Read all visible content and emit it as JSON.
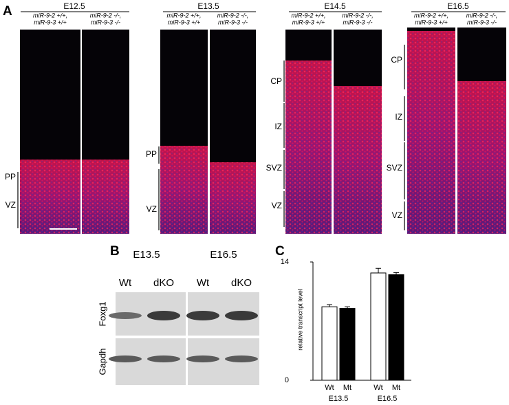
{
  "panel_a": {
    "label": "A",
    "panels": [
      {
        "stage": "E12.5",
        "genotypes": [
          [
            "miR-9-2 +/+,",
            "miR-9-3 +/+"
          ],
          [
            "miR-9-2 -/-,",
            "miR-9-3 -/-"
          ]
        ],
        "regions": [
          "PP",
          "VZ"
        ]
      },
      {
        "stage": "E13.5",
        "genotypes": [
          [
            "miR-9-2 +/+,",
            "miR-9-3 +/+"
          ],
          [
            "miR-9-2 -/-,",
            "miR-9-3 -/-"
          ]
        ],
        "regions": [
          "PP",
          "VZ"
        ]
      },
      {
        "stage": "E14.5",
        "genotypes": [
          [
            "miR-9-2 +/+,",
            "miR-9-3 +/+"
          ],
          [
            "miR-9-2 -/-,",
            "miR-9-3 -/-"
          ]
        ],
        "regions": [
          "CP",
          "IZ",
          "SVZ",
          "VZ"
        ]
      },
      {
        "stage": "E16.5",
        "genotypes": [
          [
            "miR-9-2 +/+,",
            "miR-9-3 +/+"
          ],
          [
            "miR-9-2 -/-,",
            "miR-9-3 -/-"
          ]
        ],
        "regions": [
          "CP",
          "IZ",
          "SVZ",
          "VZ"
        ]
      }
    ]
  },
  "panel_b": {
    "label": "B",
    "stages": [
      "E13.5",
      "E16.5"
    ],
    "lanes": [
      "Wt",
      "dKO",
      "Wt",
      "dKO"
    ],
    "blots": [
      "Foxg1",
      "Gapdh"
    ]
  },
  "chart_data": {
    "type": "bar",
    "panel_label": "C",
    "ylabel": "relative transcript level",
    "categories": [
      "E13.5",
      "E16.5"
    ],
    "series": [
      {
        "name": "Wt",
        "color": "#ffffff",
        "values": [
          8.7,
          12.7
        ],
        "errors": [
          0.25,
          0.55
        ]
      },
      {
        "name": "Mt",
        "color": "#000000",
        "values": [
          8.5,
          12.5
        ],
        "errors": [
          0.2,
          0.25
        ]
      }
    ],
    "ylim": [
      0,
      14
    ],
    "yticks": [
      0,
      14
    ]
  }
}
